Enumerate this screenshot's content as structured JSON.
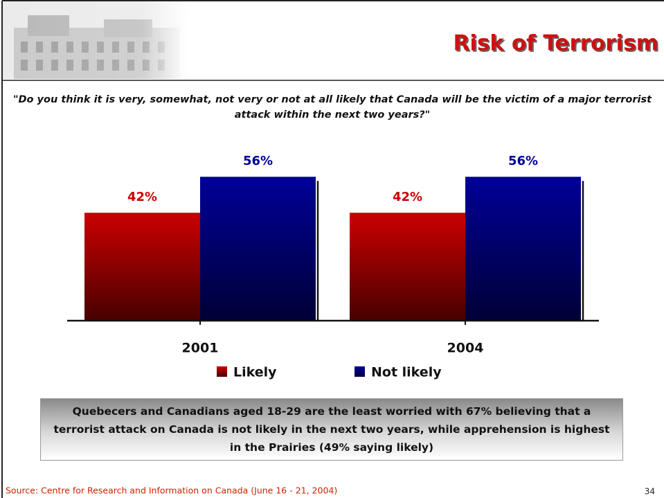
{
  "chart_data": {
    "type": "bar",
    "title": "Risk of Terrorism",
    "subtitle": "\"Do you think it is very, somewhat, not very or not at all likely that Canada will be the victim of a major terrorist attack within the next two years?\"",
    "categories": [
      "2001",
      "2004"
    ],
    "series": [
      {
        "name": "Likely",
        "color": "#cc0000",
        "values": [
          42,
          42
        ],
        "value_labels": [
          "42%",
          "42%"
        ]
      },
      {
        "name": "Not likely",
        "color": "#000099",
        "values": [
          56,
          56
        ],
        "value_labels": [
          "56%",
          "56%"
        ]
      }
    ],
    "annotation": "Quebecers and Canadians aged 18-29 are the least worried with 67% believing that a terrorist attack on Canada is not likely in the next two years, while apprehension is highest in the Prairies (49% saying likely)",
    "source": "Source: Centre for Research and Information on Canada (June 16 - 21, 2004)",
    "page_number": "34"
  }
}
